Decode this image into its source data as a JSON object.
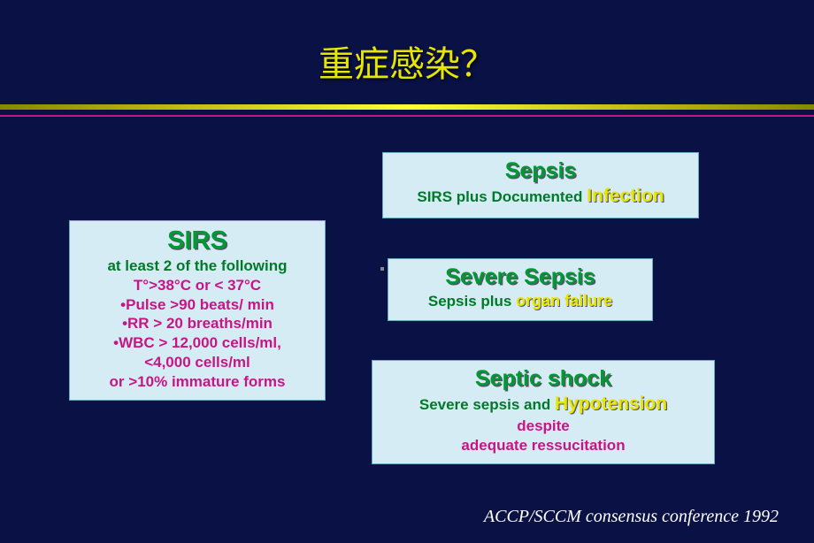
{
  "title": "重症感染？",
  "sirs": {
    "heading": "SIRS",
    "subtitle": "at least 2 of the following",
    "criteria": [
      "T°>38°C or < 37°C",
      "•Pulse >90 beats/ min",
      "•RR > 20 breaths/min",
      "•WBC > 12,000 cells/ml,",
      "<4,000 cells/ml",
      "or >10% immature forms"
    ]
  },
  "sepsis": {
    "heading": "Sepsis",
    "prefix": "SIRS plus Documented ",
    "highlight": "Infection"
  },
  "severe": {
    "heading": "Severe Sepsis",
    "prefix": "Sepsis plus ",
    "highlight": "organ failure"
  },
  "shock": {
    "heading": "Septic shock",
    "prefix": "Severe sepsis and ",
    "highlight": "Hypotension",
    "line2": "despite",
    "line3": "adequate ressucitation"
  },
  "citation": "ACCP/SCCM consensus conference 1992"
}
